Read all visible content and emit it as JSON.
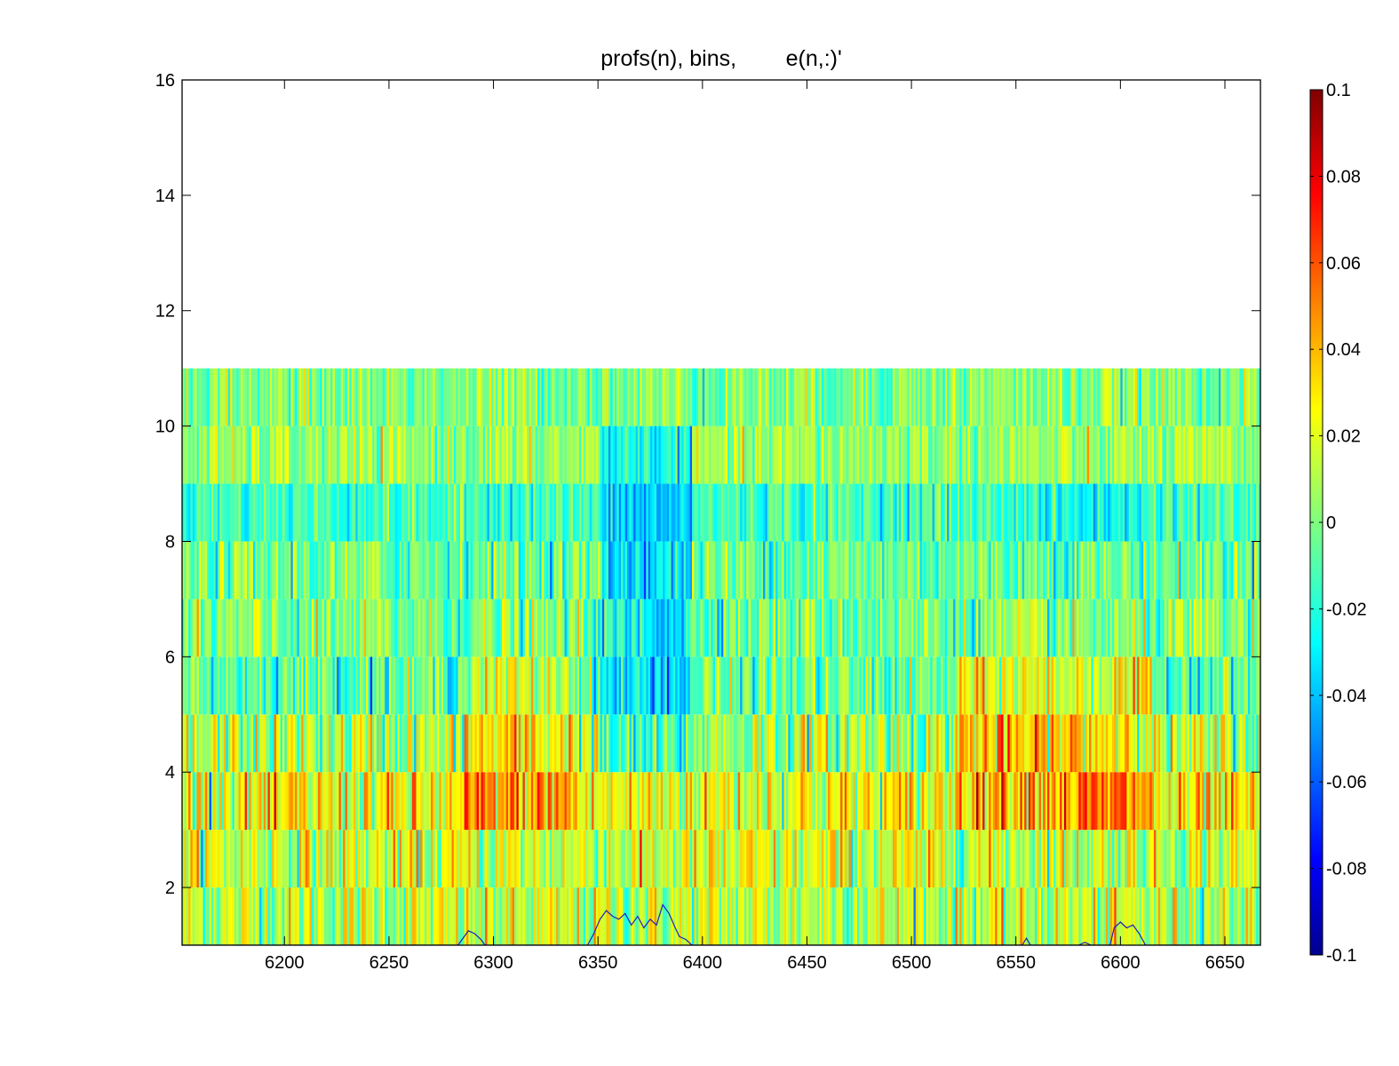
{
  "chart_data": {
    "type": "heatmap",
    "title": "profs(n), bins,        e(n,:)'",
    "xlabel": "",
    "ylabel": "",
    "xlim": [
      6151,
      6667
    ],
    "ylim": [
      1,
      16
    ],
    "xticks": [
      6200,
      6250,
      6300,
      6350,
      6400,
      6450,
      6500,
      6550,
      6600,
      6650
    ],
    "yticks": [
      2,
      4,
      6,
      8,
      10,
      12,
      14,
      16
    ],
    "grid": false,
    "colormap": "jet",
    "colorbar": {
      "range": [
        -0.1,
        0.1
      ],
      "ticks": [
        -0.1,
        -0.08,
        -0.06,
        -0.04,
        -0.02,
        0,
        0.02,
        0.04,
        0.06,
        0.08,
        0.1
      ],
      "tick_labels": [
        "-0.1",
        "-0.08",
        "-0.06",
        "-0.04",
        "-0.02",
        "0",
        "0.02",
        "0.04",
        "0.06",
        "0.08",
        "0.1"
      ]
    },
    "rows": {
      "count": 10,
      "y_edges": [
        1,
        2,
        3,
        4,
        5,
        6,
        7,
        8,
        9,
        10,
        11
      ],
      "row_mean_values": [
        0.012,
        0.015,
        0.022,
        0.008,
        -0.006,
        -0.002,
        -0.004,
        -0.012,
        0.004,
        0.001
      ],
      "row_spread": [
        0.018,
        0.018,
        0.02,
        0.02,
        0.016,
        0.016,
        0.015,
        0.012,
        0.012,
        0.013
      ],
      "notes": "10 horizontal bands of per-profile values; warm (orange/red) regions around x 6290-6340 and 6520-6610 in rows 3-5; cool (blue) region around x 6350-6390 in rows 4-9"
    },
    "overlay_line": {
      "color": "#1f1fbf",
      "description": "trace along bottom row",
      "points": [
        [
          6151,
          1.0
        ],
        [
          6283,
          1.0
        ],
        [
          6285,
          1.1
        ],
        [
          6288,
          1.25
        ],
        [
          6291,
          1.2
        ],
        [
          6294,
          1.1
        ],
        [
          6296,
          1.0
        ],
        [
          6345,
          1.0
        ],
        [
          6348,
          1.2
        ],
        [
          6351,
          1.45
        ],
        [
          6354,
          1.6
        ],
        [
          6357,
          1.5
        ],
        [
          6360,
          1.45
        ],
        [
          6363,
          1.55
        ],
        [
          6366,
          1.35
        ],
        [
          6369,
          1.5
        ],
        [
          6372,
          1.3
        ],
        [
          6375,
          1.45
        ],
        [
          6378,
          1.35
        ],
        [
          6381,
          1.7
        ],
        [
          6384,
          1.55
        ],
        [
          6387,
          1.3
        ],
        [
          6389,
          1.15
        ],
        [
          6392,
          1.1
        ],
        [
          6395,
          1.0
        ],
        [
          6553,
          1.0
        ],
        [
          6555,
          1.12
        ],
        [
          6557,
          1.0
        ],
        [
          6580,
          1.0
        ],
        [
          6583,
          1.05
        ],
        [
          6586,
          1.0
        ],
        [
          6595,
          1.0
        ],
        [
          6597,
          1.3
        ],
        [
          6600,
          1.4
        ],
        [
          6603,
          1.3
        ],
        [
          6606,
          1.35
        ],
        [
          6609,
          1.2
        ],
        [
          6612,
          1.0
        ],
        [
          6667,
          1.0
        ]
      ]
    },
    "colors": {
      "low": "#00008f",
      "mid": "#7fff7f",
      "high": "#800000",
      "axis": "#000000",
      "background": "#ffffff"
    }
  }
}
